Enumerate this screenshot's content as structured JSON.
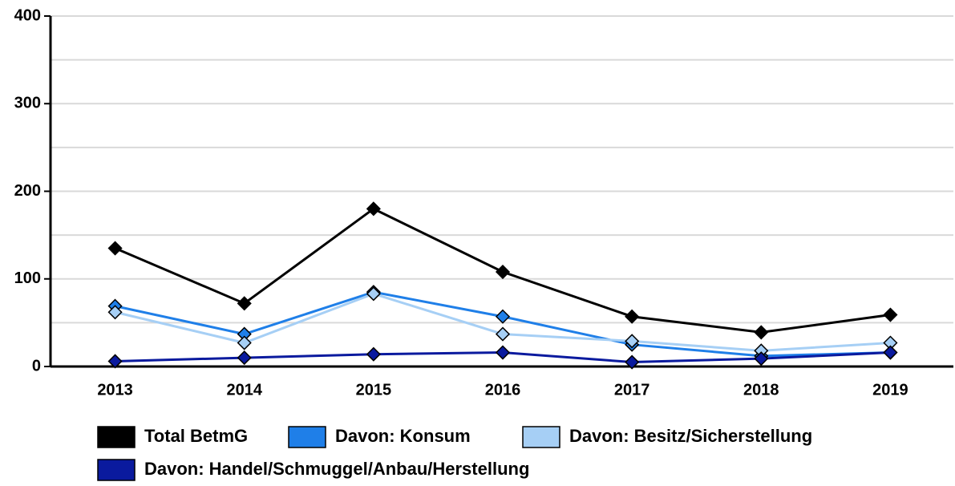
{
  "chart_data": {
    "type": "line",
    "categories": [
      "2013",
      "2014",
      "2015",
      "2016",
      "2017",
      "2018",
      "2019"
    ],
    "series": [
      {
        "name": "Total BetmG",
        "color": "#000000",
        "values": [
          135,
          72,
          180,
          108,
          57,
          39,
          59
        ]
      },
      {
        "name": "Davon: Konsum",
        "color": "#1f7fe8",
        "values": [
          69,
          37,
          85,
          57,
          25,
          12,
          16
        ]
      },
      {
        "name": "Davon: Besitz/Sicherstellung",
        "color": "#a6cff5",
        "values": [
          62,
          27,
          83,
          37,
          29,
          18,
          27
        ]
      },
      {
        "name": "Davon: Handel/Schmuggel/Anbau/Herstellung",
        "color": "#0a1a9e",
        "values": [
          6,
          10,
          14,
          16,
          5,
          9,
          16
        ]
      }
    ],
    "ylim": [
      0,
      400
    ],
    "yticks": [
      0,
      100,
      200,
      300,
      400
    ],
    "minor_yticks": [
      50,
      150,
      250,
      350
    ],
    "grid": true,
    "legend": "bottom"
  }
}
